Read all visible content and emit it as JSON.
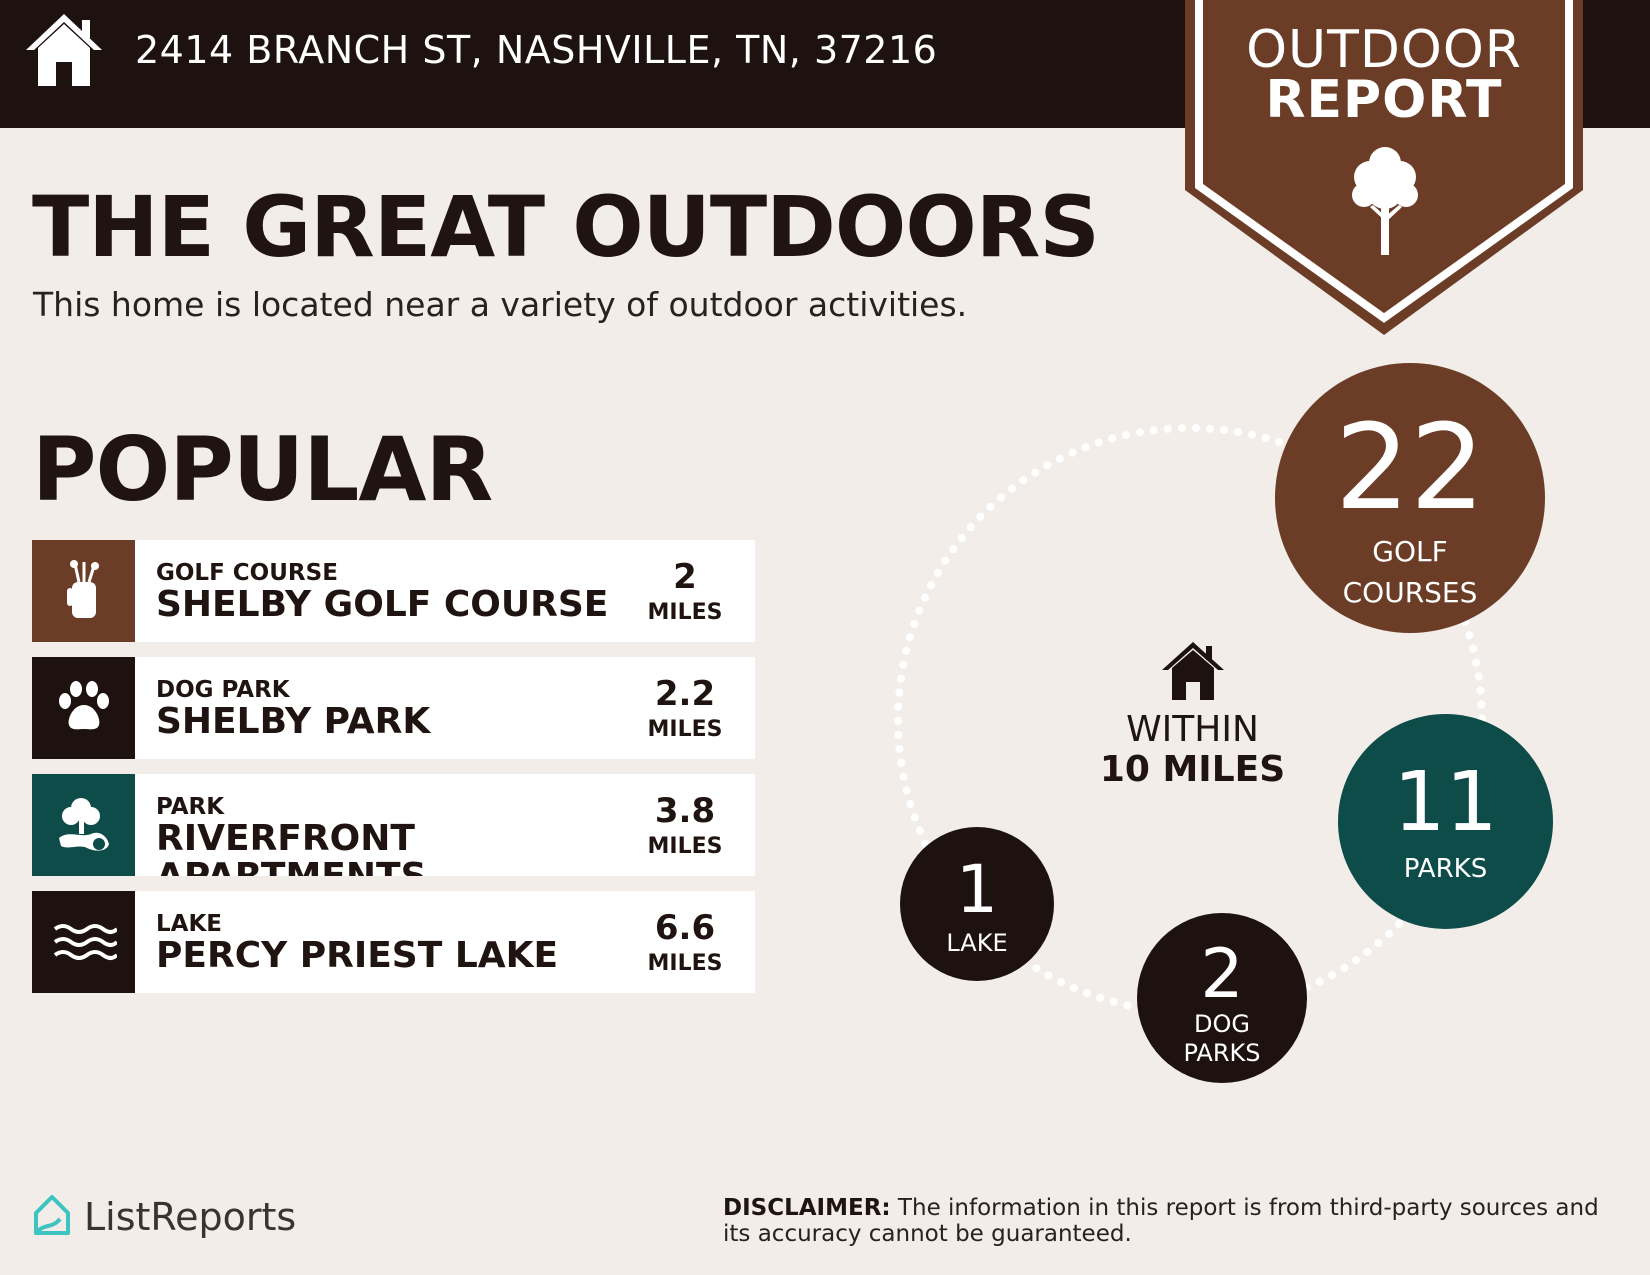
{
  "header": {
    "address": "2414 BRANCH ST, NASHVILLE, TN, 37216",
    "badge_line1": "OUTDOOR",
    "badge_line2": "REPORT"
  },
  "intro": {
    "title": "THE GREAT OUTDOORS",
    "subtitle": "This home is located near a variety of outdoor activities."
  },
  "popular": {
    "heading": "POPULAR",
    "items": [
      {
        "category": "GOLF COURSE",
        "name": "SHELBY GOLF COURSE",
        "distance": "2",
        "unit": "MILES",
        "icon": "golf-bag-icon",
        "color": "#6b3c26"
      },
      {
        "category": "DOG PARK",
        "name": "SHELBY PARK",
        "distance": "2.2",
        "unit": "MILES",
        "icon": "paw-icon",
        "color": "#1d120f"
      },
      {
        "category": "PARK",
        "name": "RIVERFRONT APARTMENTS",
        "distance": "3.8",
        "unit": "MILES",
        "icon": "park-icon",
        "color": "#0e4c4a"
      },
      {
        "category": "LAKE",
        "name": "PERCY PRIEST LAKE",
        "distance": "6.6",
        "unit": "MILES",
        "icon": "waves-icon",
        "color": "#1d120f"
      }
    ]
  },
  "counts": {
    "golf": {
      "number": "22",
      "label_line1": "GOLF",
      "label_line2": "COURSES"
    },
    "parks": {
      "number": "11",
      "label": "PARKS"
    },
    "lake": {
      "number": "1",
      "label": "LAKE"
    },
    "dog_parks": {
      "number": "2",
      "label_line1": "DOG",
      "label_line2": "PARKS"
    },
    "center_line1": "WITHIN",
    "center_line2": "10 MILES"
  },
  "footer": {
    "brand": "ListReports",
    "disclaimer_label": "DISCLAIMER:",
    "disclaimer_text": " The information in this report is from third-party sources and its accuracy cannot be guaranteed."
  },
  "colors": {
    "dark": "#1d120f",
    "brown": "#6b3c26",
    "teal": "#0e4c4a",
    "background": "#f2ede9"
  }
}
